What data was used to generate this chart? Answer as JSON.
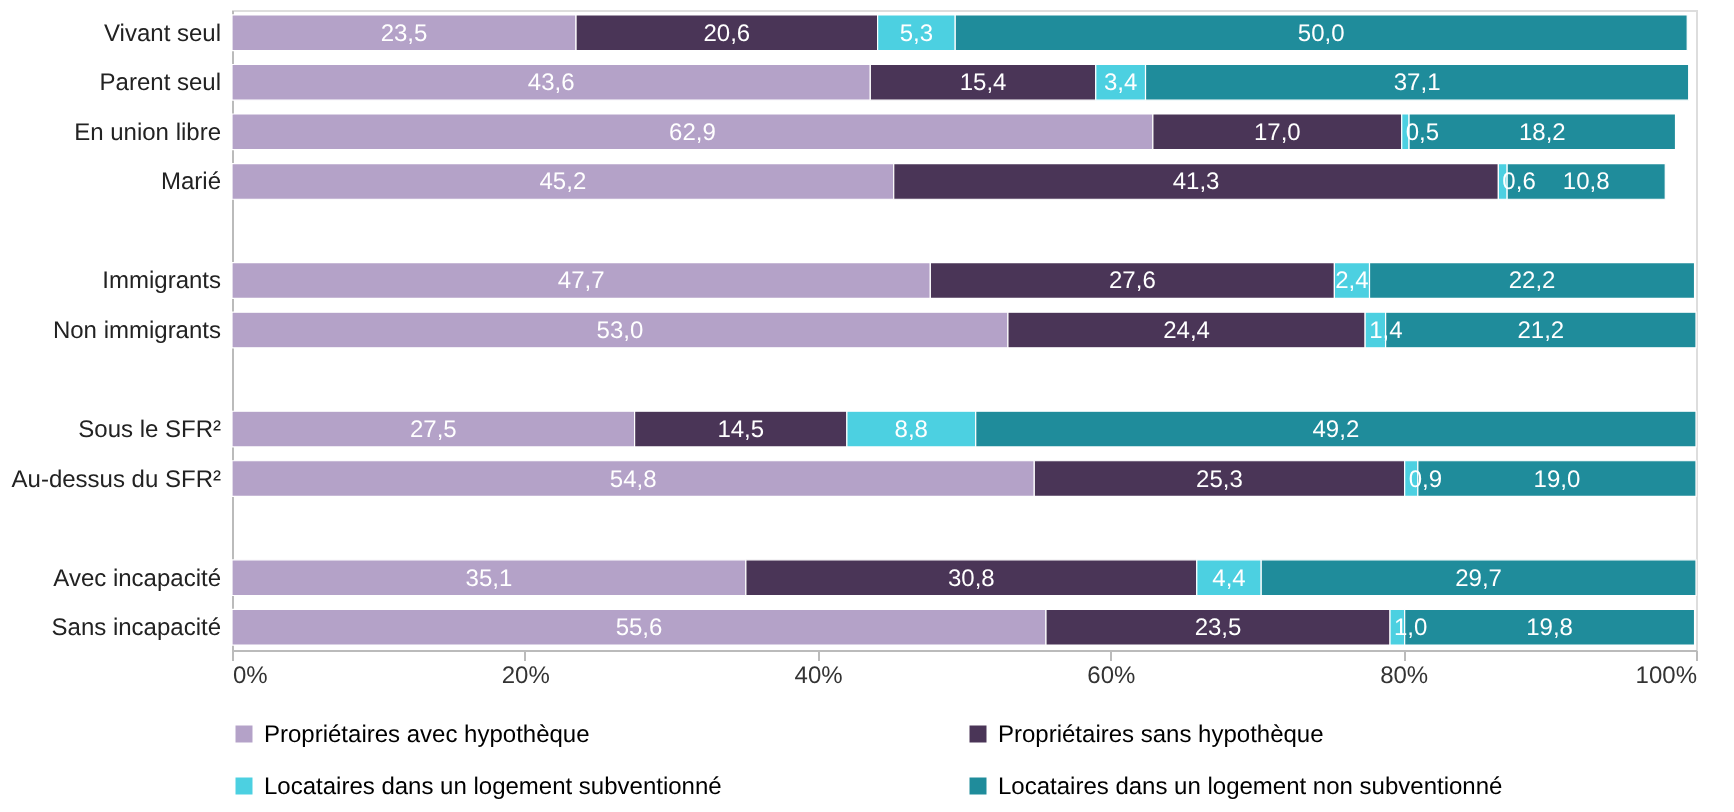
{
  "chart_data": {
    "type": "bar",
    "orientation": "horizontal",
    "stacked": true,
    "categories": [
      "Vivant seul",
      "Parent seul",
      "En union libre",
      "Marié",
      null,
      "Immigrants",
      "Non immigrants",
      null,
      "Sous le SFR²",
      "Au-dessus du SFR²",
      null,
      "Avec incapacité",
      "Sans incapacité"
    ],
    "series": [
      {
        "name": "Propriétaires avec hypothèque",
        "color": "#b4a2c8",
        "values": [
          23.5,
          43.6,
          62.9,
          45.2,
          null,
          47.7,
          53.0,
          null,
          27.5,
          54.8,
          null,
          35.1,
          55.6
        ],
        "value_labels": [
          "23,5",
          "43,6",
          "62,9",
          "45,2",
          null,
          "47,7",
          "53,0",
          null,
          "27,5",
          "54,8",
          null,
          "35,1",
          "55,6"
        ]
      },
      {
        "name": "Propriétaires sans hypothèque",
        "color": "#4a3557",
        "values": [
          20.6,
          15.4,
          17.0,
          41.3,
          null,
          27.6,
          24.4,
          null,
          14.5,
          25.3,
          null,
          30.8,
          23.5
        ],
        "value_labels": [
          "20,6",
          "15,4",
          "17,0",
          "41,3",
          null,
          "27,6",
          "24,4",
          null,
          "14,5",
          "25,3",
          null,
          "30,8",
          "23,5"
        ]
      },
      {
        "name": "Locataires dans un logement subventionné",
        "color": "#4cd0e1",
        "values": [
          5.3,
          3.4,
          0.5,
          0.6,
          null,
          2.4,
          1.4,
          null,
          8.8,
          0.9,
          null,
          4.4,
          1.0
        ],
        "value_labels": [
          "5,3",
          "3,4",
          "0,5",
          "0,6",
          null,
          "2,4",
          "1,4",
          null,
          "8,8",
          "0,9",
          null,
          "4,4",
          "1,0"
        ]
      },
      {
        "name": "Locataires dans un logement non subventionné",
        "color": "#1f8c9b",
        "values": [
          50.0,
          37.1,
          18.2,
          10.8,
          null,
          22.2,
          21.2,
          null,
          49.2,
          19.0,
          null,
          29.7,
          19.8
        ],
        "value_labels": [
          "50,0",
          "37,1",
          "18,2",
          "10,8",
          null,
          "22,2",
          "21,2",
          null,
          "49,2",
          "19,0",
          null,
          "29,7",
          "19,8"
        ]
      }
    ],
    "xlim": [
      0,
      100
    ],
    "xticks": [
      {
        "value": 0,
        "label": "0%"
      },
      {
        "value": 20,
        "label": "20%"
      },
      {
        "value": 40,
        "label": "40%"
      },
      {
        "value": 60,
        "label": "60%"
      },
      {
        "value": 80,
        "label": "80%"
      },
      {
        "value": 100,
        "label": "100%"
      }
    ],
    "grid": false,
    "legend": "bottom"
  }
}
